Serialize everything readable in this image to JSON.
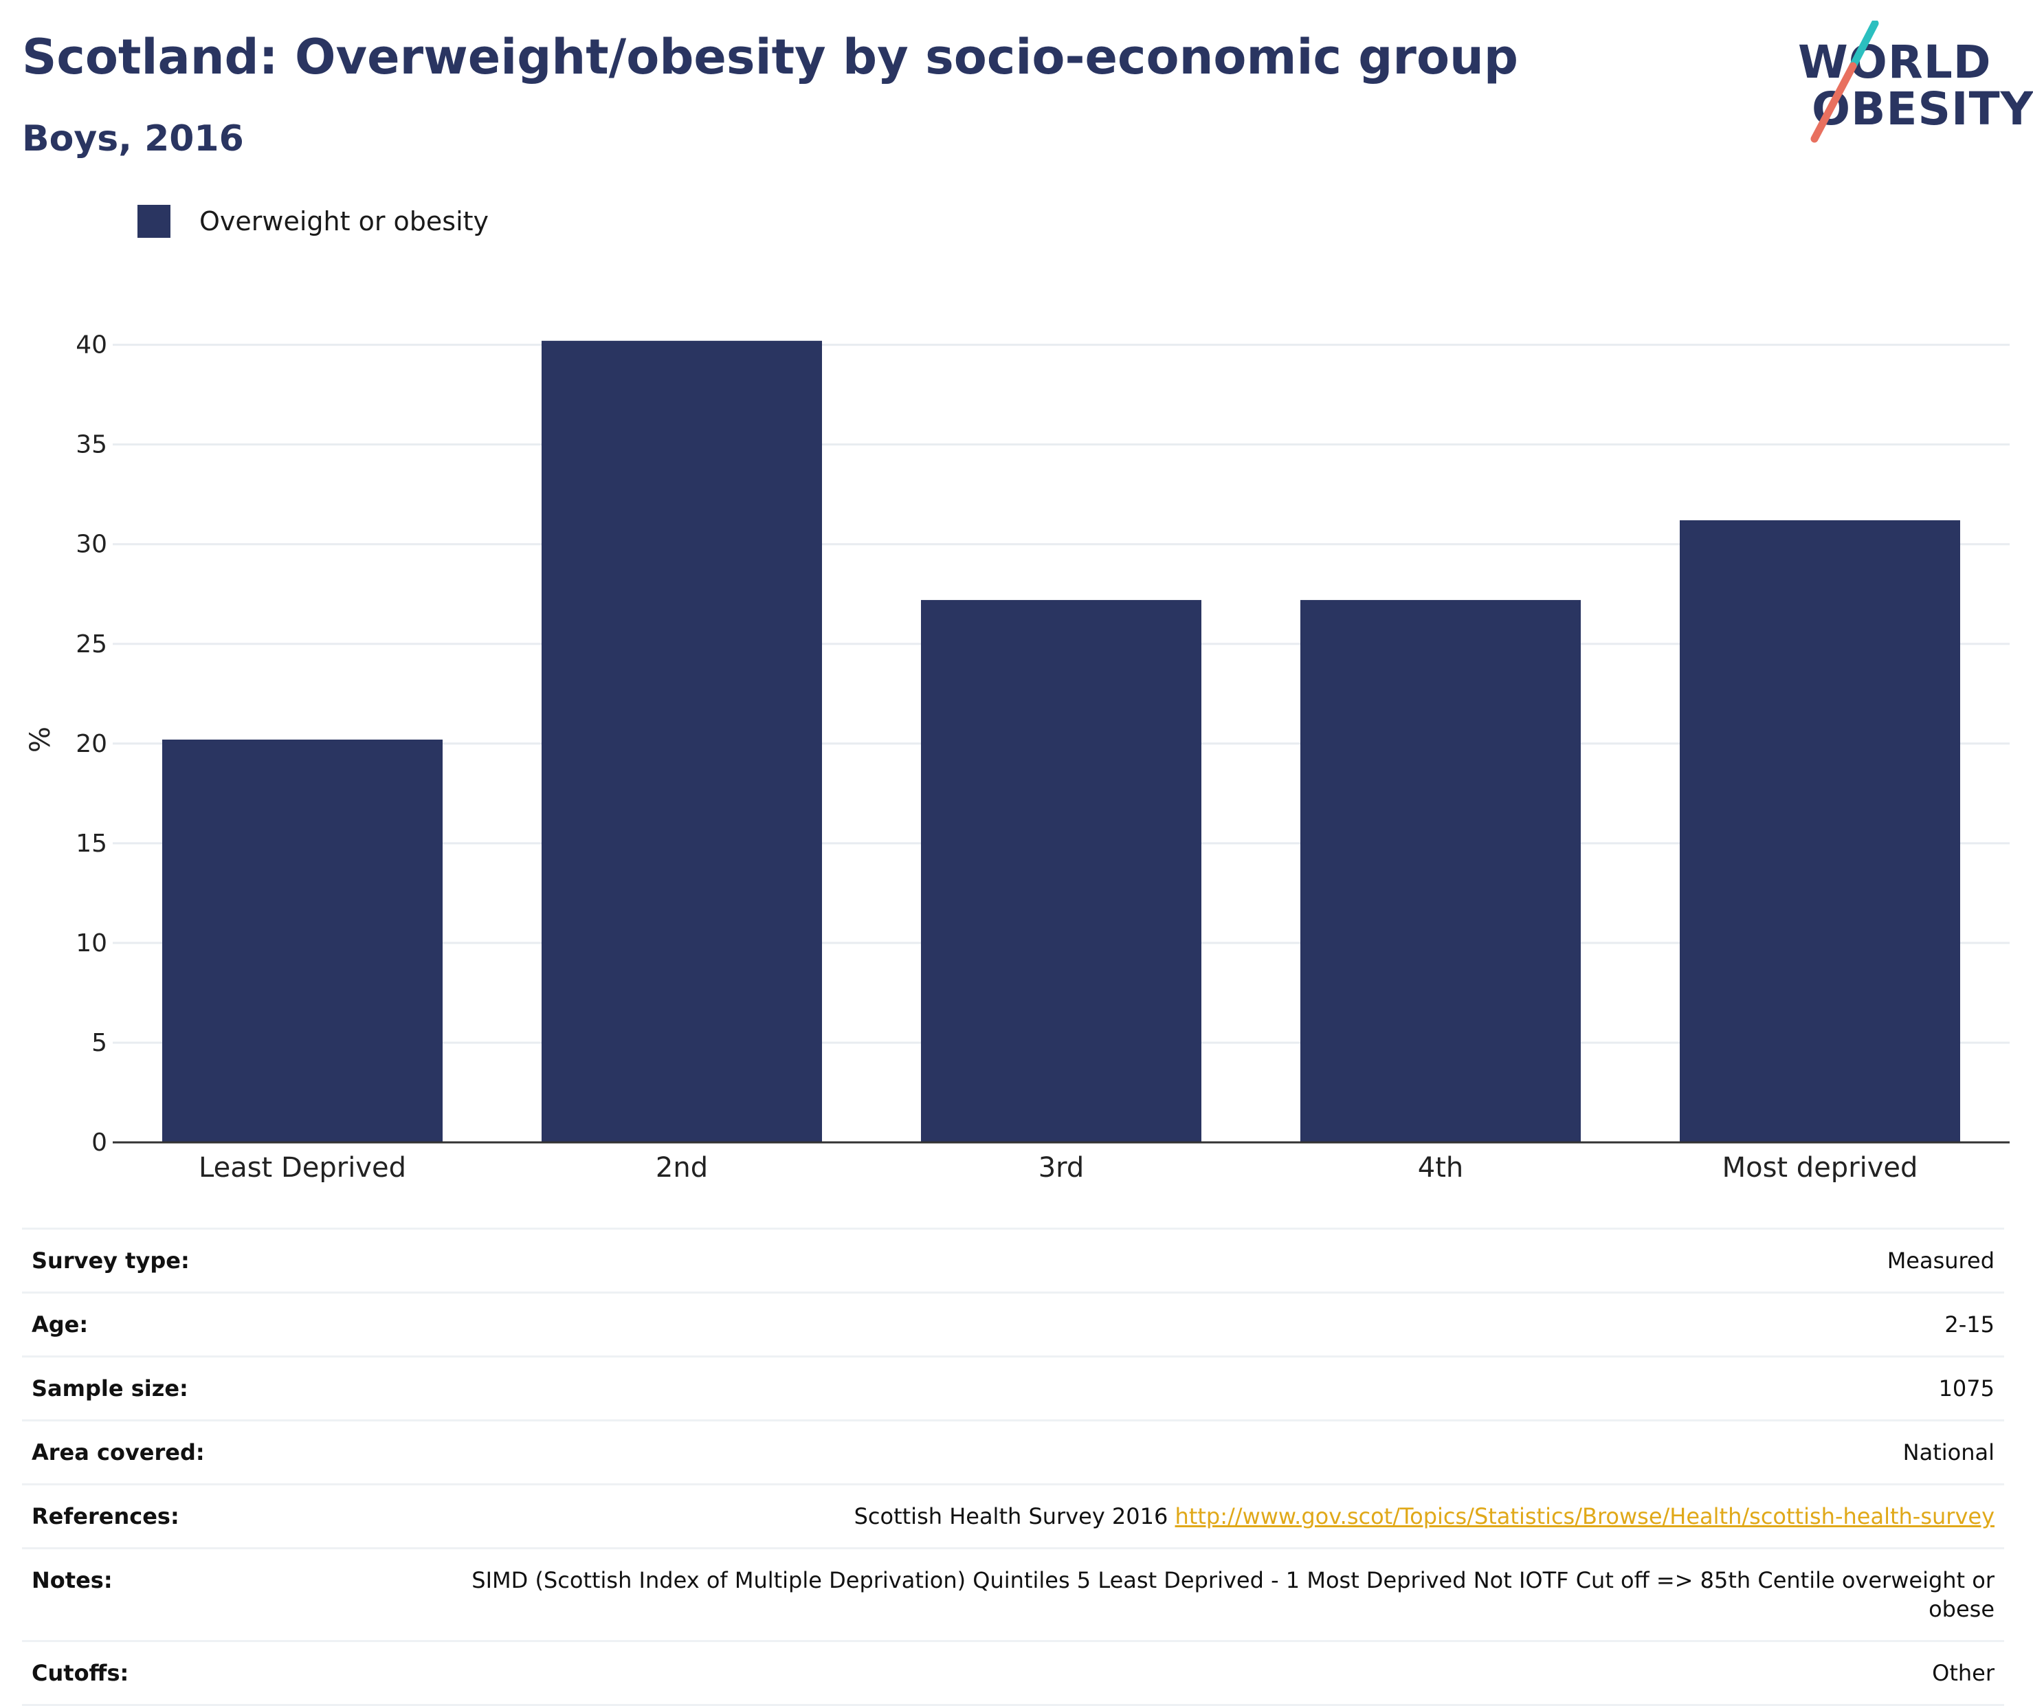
{
  "header": {
    "title": "Scotland: Overweight/obesity by socio-economic group",
    "subtitle": "Boys, 2016"
  },
  "logo": {
    "line1": "WORLD",
    "line2": "OBESITY",
    "accent_teal": "#2bbfbf",
    "accent_coral": "#e8705f"
  },
  "colors": {
    "bar": "#2a3561",
    "grid": "#e8ecf0",
    "axis": "#333333"
  },
  "chart_data": {
    "type": "bar",
    "categories": [
      "Least Deprived",
      "2nd",
      "3rd",
      "4th",
      "Most deprived"
    ],
    "series": [
      {
        "name": "Overweight or obesity",
        "values": [
          20.2,
          40.2,
          27.2,
          27.2,
          31.2
        ]
      }
    ],
    "ylabel": "%",
    "ylim": [
      0,
      40
    ],
    "yticks": [
      0,
      5,
      10,
      15,
      20,
      25,
      30,
      35,
      40
    ],
    "grid": true,
    "legend": "top-left"
  },
  "metadata": [
    {
      "label": "Survey type:",
      "value": "Measured"
    },
    {
      "label": "Age:",
      "value": "2-15"
    },
    {
      "label": "Sample size:",
      "value": "1075"
    },
    {
      "label": "Area covered:",
      "value": "National"
    },
    {
      "label": "References:",
      "value": "Scottish Health Survey 2016",
      "link": "http://www.gov.scot/Topics/Statistics/Browse/Health/scottish-health-survey"
    },
    {
      "label": "Notes:",
      "value": "SIMD (Scottish Index of Multiple Deprivation) Quintiles 5 Least Deprived - 1 Most Deprived Not IOTF Cut off => 85th Centile overweight or obese"
    },
    {
      "label": "Cutoffs:",
      "value": "Other"
    }
  ]
}
